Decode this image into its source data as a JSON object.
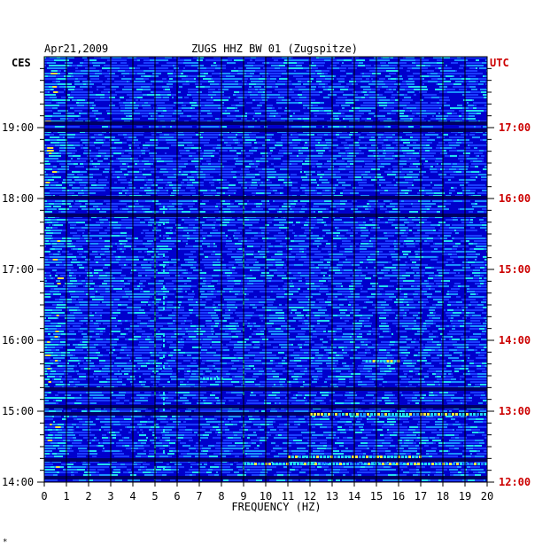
{
  "chart_data": {
    "type": "heatmap",
    "title": "ZUGS HHZ BW 01 (Zugspitze)",
    "date": "Apr21,2009",
    "left_timezone": "CES",
    "right_timezone": "UTC",
    "xlabel": "FREQUENCY (HZ)",
    "xlim": [
      0,
      20
    ],
    "x_ticks": [
      "0",
      "1",
      "2",
      "3",
      "4",
      "5",
      "6",
      "7",
      "8",
      "9",
      "10",
      "11",
      "12",
      "13",
      "14",
      "15",
      "16",
      "17",
      "18",
      "19",
      "20"
    ],
    "y_ticks_left": [
      "14:00",
      "15:00",
      "16:00",
      "17:00",
      "18:00",
      "19:00"
    ],
    "y_ticks_right": [
      "12:00",
      "13:00",
      "14:00",
      "15:00",
      "16:00",
      "17:00"
    ],
    "ylim_hours_ces": [
      14.0,
      19.95
    ],
    "colors": {
      "background": "#0000cc",
      "low": "#1a3cff",
      "mid": "#1a90ff",
      "high": "#22ddee",
      "hot": "#f5e83a",
      "grid": "#000000",
      "utc_text": "#cc0000",
      "ces_text": "#000000"
    },
    "features": {
      "low_frequency_band_hz": [
        0,
        1.2
      ],
      "persistent_lines_hz": [
        5.0,
        5.4,
        9.0
      ],
      "dark_gap_rows_hours_ces": [
        14.05,
        14.3,
        14.95,
        15.05,
        15.3,
        17.75,
        18.0,
        18.95,
        19.05
      ],
      "bright_events": [
        {
          "hour": 14.25,
          "f_start": 9,
          "f_end": 20
        },
        {
          "hour": 14.35,
          "f_start": 11,
          "f_end": 17
        },
        {
          "hour": 14.95,
          "f_start": 12,
          "f_end": 20
        },
        {
          "hour": 15.45,
          "f_start": 7,
          "f_end": 8
        },
        {
          "hour": 15.7,
          "f_start": 14.5,
          "f_end": 16
        }
      ]
    }
  },
  "footnote": "*"
}
